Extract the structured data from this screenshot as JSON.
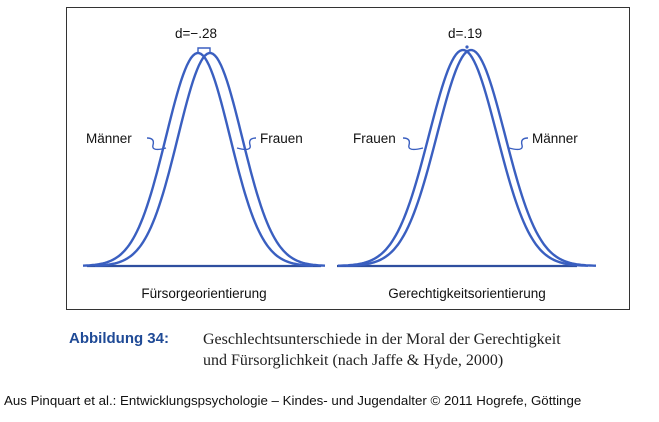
{
  "figure": {
    "panels": [
      {
        "effect_label": "d=−.28",
        "left_curve_label": "Männer",
        "right_curve_label": "Frauen",
        "axis_label": "Fürsorgeorientierung"
      },
      {
        "effect_label": "d=.19",
        "left_curve_label": "Frauen",
        "right_curve_label": "Männer",
        "axis_label": "Gerechtigkeitsorientierung"
      }
    ],
    "colors": {
      "curve": "#3a5fc0",
      "axis": "#2f4f9f",
      "frame": "#333333",
      "caption_label": "#1f4a96"
    }
  },
  "caption": {
    "label": "Abbildung 34:",
    "text_line1": "Geschlechtsunterschiede in der Moral der Gerechtigkeit",
    "text_line2": "und Fürsorglichkeit (nach Jaffe & Hyde, 2000)"
  },
  "source": "Aus Pinquart et al.: Entwicklungspsychologie – Kindes- und Jugendalter © 2011 Hogrefe, Göttinge"
}
